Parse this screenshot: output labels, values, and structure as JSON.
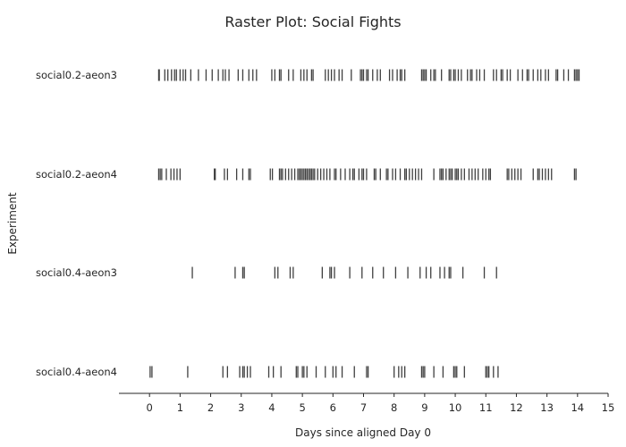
{
  "chart_data": {
    "type": "raster",
    "title": "Raster Plot: Social Fights",
    "xlabel": "Days since aligned Day 0",
    "ylabel": "Experiment",
    "xlim": [
      -1,
      15
    ],
    "xticks": [
      0,
      1,
      2,
      3,
      4,
      5,
      6,
      7,
      8,
      9,
      10,
      11,
      12,
      13,
      14,
      15
    ],
    "grid": false,
    "series": [
      {
        "name": "social0.2-aeon3",
        "events": [
          0.3,
          0.32,
          0.5,
          0.6,
          0.72,
          0.82,
          0.88,
          1.0,
          1.1,
          1.18,
          1.35,
          1.6,
          1.85,
          2.05,
          2.25,
          2.4,
          2.48,
          2.6,
          2.9,
          3.05,
          3.25,
          3.38,
          3.5,
          4.0,
          4.1,
          4.25,
          4.3,
          4.55,
          4.7,
          4.95,
          5.05,
          5.15,
          5.3,
          5.35,
          5.75,
          5.85,
          5.95,
          6.05,
          6.2,
          6.3,
          6.6,
          6.9,
          6.95,
          7.0,
          7.1,
          7.15,
          7.3,
          7.45,
          7.55,
          7.85,
          7.95,
          8.1,
          8.2,
          8.25,
          8.35,
          8.9,
          8.95,
          9.0,
          9.05,
          9.2,
          9.3,
          9.35,
          9.55,
          9.8,
          9.85,
          9.95,
          10.0,
          10.1,
          10.2,
          10.4,
          10.5,
          10.55,
          10.7,
          10.8,
          10.95,
          11.25,
          11.35,
          11.5,
          11.55,
          11.7,
          11.8,
          12.05,
          12.2,
          12.35,
          12.4,
          12.55,
          12.7,
          12.8,
          12.95,
          13.05,
          13.3,
          13.35,
          13.55,
          13.7,
          13.9,
          13.95,
          14.0,
          14.05
        ]
      },
      {
        "name": "social0.2-aeon4",
        "events": [
          0.3,
          0.35,
          0.4,
          0.55,
          0.7,
          0.8,
          0.9,
          1.0,
          2.12,
          2.15,
          2.45,
          2.55,
          2.85,
          3.05,
          3.25,
          3.3,
          3.95,
          4.02,
          4.25,
          4.3,
          4.35,
          4.45,
          4.55,
          4.65,
          4.75,
          4.85,
          4.9,
          4.95,
          5.0,
          5.05,
          5.1,
          5.15,
          5.2,
          5.25,
          5.3,
          5.35,
          5.4,
          5.5,
          5.6,
          5.7,
          5.8,
          5.9,
          6.05,
          6.1,
          6.25,
          6.4,
          6.55,
          6.65,
          6.7,
          6.85,
          6.95,
          7.0,
          7.1,
          7.35,
          7.4,
          7.55,
          7.75,
          7.8,
          7.95,
          8.05,
          8.2,
          8.35,
          8.4,
          8.5,
          8.6,
          8.7,
          8.8,
          8.9,
          9.3,
          9.5,
          9.55,
          9.6,
          9.7,
          9.8,
          9.85,
          9.9,
          10.0,
          10.05,
          10.1,
          10.2,
          10.3,
          10.45,
          10.55,
          10.65,
          10.75,
          10.9,
          11.0,
          11.1,
          11.15,
          11.7,
          11.75,
          11.85,
          11.95,
          12.05,
          12.15,
          12.55,
          12.7,
          12.75,
          12.85,
          12.95,
          13.05,
          13.15,
          13.9,
          13.95
        ]
      },
      {
        "name": "social0.4-aeon3",
        "events": [
          1.4,
          2.8,
          3.05,
          3.1,
          4.1,
          4.2,
          4.6,
          4.7,
          5.65,
          5.9,
          5.95,
          6.05,
          6.55,
          6.95,
          7.3,
          7.65,
          8.05,
          8.45,
          8.85,
          9.05,
          9.2,
          9.5,
          9.65,
          9.8,
          9.85,
          10.25,
          10.95,
          11.35
        ]
      },
      {
        "name": "social0.4-aeon4",
        "events": [
          0.02,
          0.08,
          1.25,
          2.4,
          2.55,
          2.95,
          3.05,
          3.1,
          3.2,
          3.3,
          3.9,
          4.05,
          4.3,
          4.8,
          4.85,
          5.0,
          5.05,
          5.15,
          5.45,
          5.75,
          6.0,
          6.1,
          6.3,
          6.7,
          7.1,
          7.15,
          8.0,
          8.15,
          8.25,
          8.35,
          8.9,
          8.95,
          9.0,
          9.3,
          9.6,
          9.95,
          10.0,
          10.05,
          10.3,
          11.0,
          11.05,
          11.1,
          11.25,
          11.4
        ]
      }
    ],
    "colors": {
      "events": "#3f3f3f",
      "axis": "#262626",
      "text": "#262626"
    }
  }
}
